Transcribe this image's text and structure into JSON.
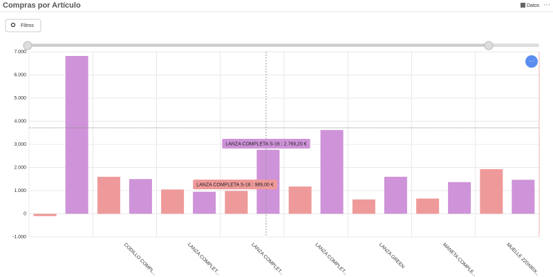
{
  "header": {
    "title": "Compras por Artículo",
    "data_button": "Datos",
    "filter_button": "Filtros"
  },
  "chart_data": {
    "type": "bar",
    "categories": [
      null,
      "CODILLO COMPL...",
      "LANZA COMPLET...",
      "LANZA COMPLET...",
      "LANZA COMPLET...",
      "LANZA GREEN",
      "MANETA COMPLE...",
      "MUELLE 220X80X..."
    ],
    "series": [
      {
        "color": "#ef9a9a",
        "values": [
          -100,
          1600,
          1050,
          989,
          1180,
          620,
          660,
          1930
        ]
      },
      {
        "color": "#ce93d8",
        "values": [
          6820,
          1500,
          950,
          2769.2,
          3620,
          1600,
          1370,
          1470
        ]
      }
    ],
    "ylim": [
      -1000,
      7000
    ],
    "yticks": [
      {
        "value": -1000,
        "label": "-1.000"
      },
      0,
      {
        "value": 1000,
        "label": "1.000"
      },
      {
        "value": 2000,
        "label": "2.000"
      },
      {
        "value": 3000,
        "label": "3.000"
      },
      {
        "value": 4000,
        "label": "4.000"
      },
      {
        "value": 5000,
        "label": "5.000"
      },
      {
        "value": 6000,
        "label": "6.000"
      },
      {
        "value": 7000,
        "label": "7.000"
      }
    ],
    "grid": true,
    "annotations": [
      "LANZA COMPLETA S-16 : 2.769,20 €",
      "LANZA COMPLETA S-16 : 989,00 €"
    ]
  }
}
